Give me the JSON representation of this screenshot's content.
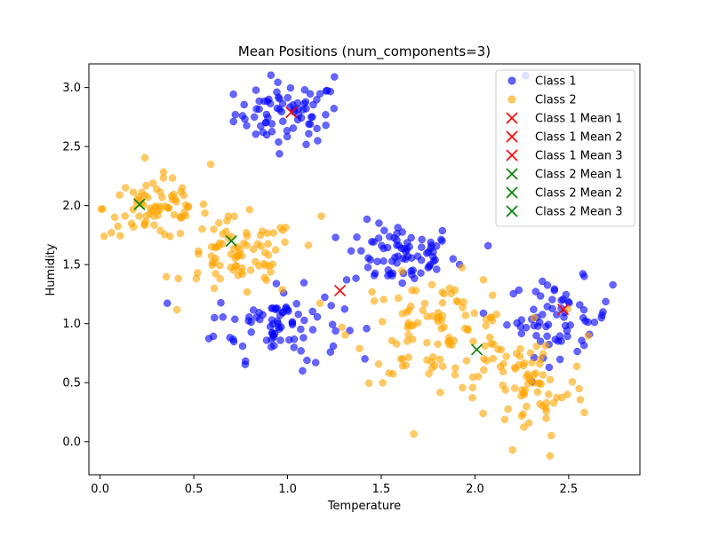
{
  "chart_data": {
    "type": "scatter",
    "title": "Mean Positions (num_components=3)",
    "xlabel": "Temperature",
    "ylabel": "Humidity",
    "xlim": [
      -0.06,
      2.88
    ],
    "ylim": [
      -0.28,
      3.2
    ],
    "xticks": [
      0.0,
      0.5,
      1.0,
      1.5,
      2.0,
      2.5
    ],
    "xtick_labels": [
      "0.0",
      "0.5",
      "1.0",
      "1.5",
      "2.0",
      "2.5"
    ],
    "yticks": [
      0.0,
      0.5,
      1.0,
      1.5,
      2.0,
      2.5,
      3.0
    ],
    "ytick_labels": [
      "0.0",
      "0.5",
      "1.0",
      "1.5",
      "2.0",
      "2.5",
      "3.0"
    ],
    "grid": false,
    "legend_position": "top-right",
    "series": [
      {
        "name": "Class 1",
        "marker": "circle",
        "color": "#0000ff",
        "clusters": [
          {
            "center": [
              1.0,
              2.78
            ],
            "spread": [
              0.14,
              0.13
            ],
            "count": 75
          },
          {
            "center": [
              1.6,
              1.58
            ],
            "spread": [
              0.15,
              0.14
            ],
            "count": 80
          },
          {
            "center": [
              0.95,
              1.0
            ],
            "spread": [
              0.17,
              0.15
            ],
            "count": 80
          },
          {
            "center": [
              2.45,
              1.05
            ],
            "spread": [
              0.14,
              0.16
            ],
            "count": 70
          }
        ],
        "extra_points": [
          [
            2.07,
            1.66
          ],
          [
            0.61,
            1.05
          ],
          [
            1.15,
            0.67
          ],
          [
            1.08,
            0.6
          ],
          [
            2.27,
            3.1
          ],
          [
            1.25,
            3.09
          ]
        ]
      },
      {
        "name": "Class 2",
        "marker": "circle",
        "color": "#ffa500",
        "clusters": [
          {
            "center": [
              0.3,
              1.98
            ],
            "spread": [
              0.14,
              0.13
            ],
            "count": 75
          },
          {
            "center": [
              0.75,
              1.55
            ],
            "spread": [
              0.15,
              0.17
            ],
            "count": 80
          },
          {
            "center": [
              1.8,
              0.95
            ],
            "spread": [
              0.22,
              0.22
            ],
            "count": 110
          },
          {
            "center": [
              2.3,
              0.45
            ],
            "spread": [
              0.15,
              0.22
            ],
            "count": 70
          }
        ],
        "extra_points": [
          [
            0.06,
            1.77
          ],
          [
            0.59,
            2.35
          ],
          [
            2.2,
            -0.07
          ],
          [
            2.4,
            -0.12
          ],
          [
            1.18,
            1.91
          ],
          [
            0.52,
            1.43
          ]
        ]
      }
    ],
    "means": [
      {
        "name": "Class 1 Mean 1",
        "x": 1.02,
        "y": 2.79,
        "color": "#ff0000",
        "marker": "x"
      },
      {
        "name": "Class 1 Mean 2",
        "x": 1.28,
        "y": 1.28,
        "color": "#ff0000",
        "marker": "x"
      },
      {
        "name": "Class 1 Mean 3",
        "x": 2.47,
        "y": 1.12,
        "color": "#ff0000",
        "marker": "x"
      },
      {
        "name": "Class 2 Mean 1",
        "x": 0.21,
        "y": 2.01,
        "color": "#008000",
        "marker": "x"
      },
      {
        "name": "Class 2 Mean 2",
        "x": 0.7,
        "y": 1.7,
        "color": "#008000",
        "marker": "x"
      },
      {
        "name": "Class 2 Mean 3",
        "x": 2.01,
        "y": 0.78,
        "color": "#008000",
        "marker": "x"
      }
    ],
    "legend": [
      {
        "label": "Class 1",
        "marker": "circle",
        "color": "#0000ff"
      },
      {
        "label": "Class 2",
        "marker": "circle",
        "color": "#ffa500"
      },
      {
        "label": "Class 1 Mean 1",
        "marker": "x",
        "color": "#ff0000"
      },
      {
        "label": "Class 1 Mean 2",
        "marker": "x",
        "color": "#ff0000"
      },
      {
        "label": "Class 1 Mean 3",
        "marker": "x",
        "color": "#ff0000"
      },
      {
        "label": "Class 2 Mean 1",
        "marker": "x",
        "color": "#008000"
      },
      {
        "label": "Class 2 Mean 2",
        "marker": "x",
        "color": "#008000"
      },
      {
        "label": "Class 2 Mean 3",
        "marker": "x",
        "color": "#008000"
      }
    ]
  }
}
